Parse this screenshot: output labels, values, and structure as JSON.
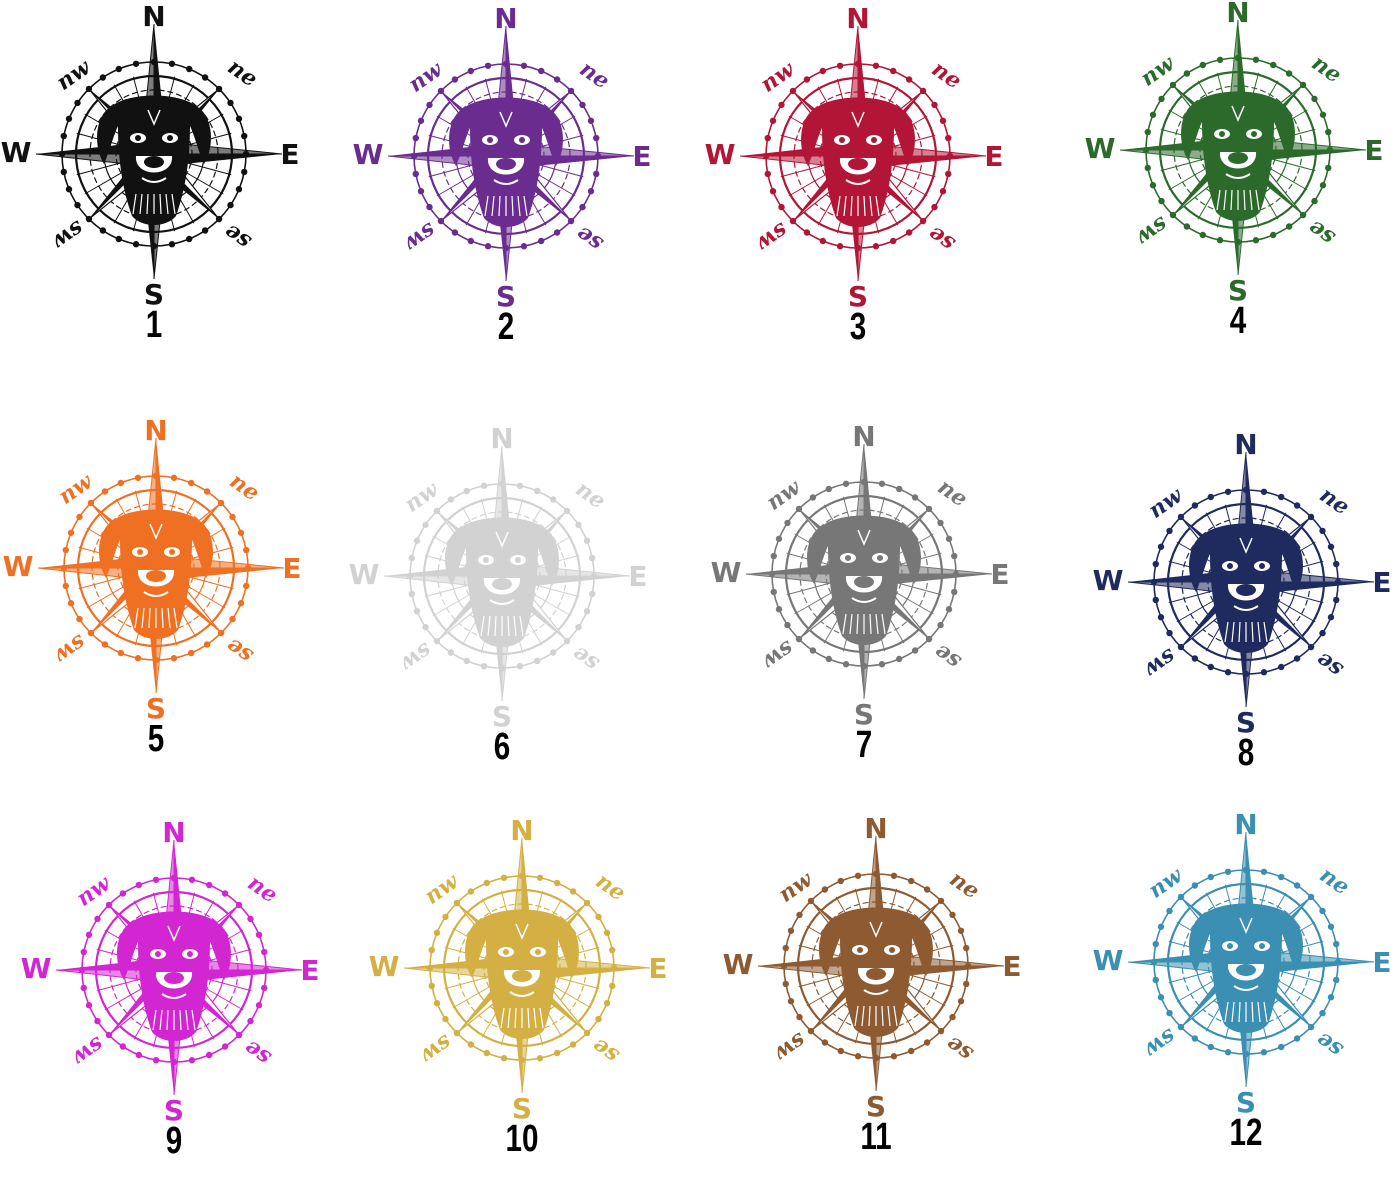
{
  "compass_labels": {
    "north": "N",
    "south": "S",
    "east": "E",
    "west": "W",
    "northeast": "ne",
    "northwest": "nw",
    "southeast": "se",
    "southwest": "sw"
  },
  "variants": [
    {
      "number": "1",
      "color": "#111111"
    },
    {
      "number": "2",
      "color": "#6a2d8f"
    },
    {
      "number": "3",
      "color": "#b31536"
    },
    {
      "number": "4",
      "color": "#2c6a2c"
    },
    {
      "number": "5",
      "color": "#ef7023"
    },
    {
      "number": "6",
      "color": "#d2d2d2"
    },
    {
      "number": "7",
      "color": "#777777"
    },
    {
      "number": "8",
      "color": "#1f2a5f"
    },
    {
      "number": "9",
      "color": "#d326d3"
    },
    {
      "number": "10",
      "color": "#d4b044"
    },
    {
      "number": "11",
      "color": "#8d5a31"
    },
    {
      "number": "12",
      "color": "#3a8fb3"
    }
  ]
}
